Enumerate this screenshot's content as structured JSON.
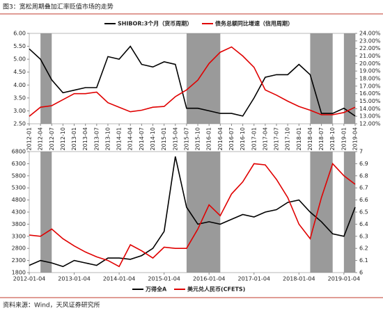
{
  "title": "图3：宽松周期叠加汇率贬值市场的走势",
  "source": "资料来源：Wind，天风证券研究所",
  "chart_data": [
    {
      "type": "line",
      "categories": [
        "2012-01",
        "2012-04",
        "2012-07",
        "2012-10",
        "2013-01",
        "2013-04",
        "2013-07",
        "2013-10",
        "2014-01",
        "2014-04",
        "2014-07",
        "2014-10",
        "2015-01",
        "2015-04",
        "2015-07",
        "2015-10",
        "2016-01",
        "2016-04",
        "2016-07",
        "2016-10",
        "2017-01",
        "2017-04",
        "2017-07",
        "2017-10",
        "2018-01",
        "2018-04",
        "2018-07",
        "2018-10",
        "2019-01",
        "2019-04"
      ],
      "series": [
        {
          "name": "SHIBOR:3个月（货币周期）",
          "color": "#000000",
          "values": [
            5.4,
            5.0,
            4.2,
            3.7,
            3.8,
            3.9,
            3.9,
            5.1,
            5.0,
            5.5,
            4.8,
            4.7,
            4.9,
            4.8,
            3.1,
            3.1,
            3.0,
            2.9,
            2.9,
            2.8,
            3.5,
            4.3,
            4.4,
            4.4,
            4.8,
            4.4,
            2.9,
            2.9,
            3.1,
            2.8
          ]
        },
        {
          "name": "债务总额同比增速（信用周期）",
          "color": "#e00000",
          "axis": "y2",
          "values": [
            13.0,
            14.2,
            14.4,
            15.2,
            16.0,
            16.0,
            16.2,
            14.8,
            14.2,
            13.6,
            13.8,
            14.2,
            14.3,
            15.6,
            16.5,
            17.8,
            20.0,
            21.5,
            22.2,
            21.0,
            19.5,
            16.5,
            15.8,
            15.0,
            14.3,
            13.8,
            13.2,
            13.2,
            13.5,
            14.2
          ]
        }
      ],
      "ylim": [
        2.5,
        6
      ],
      "yticks": [
        {
          "value": 2.5,
          "label": "2.50"
        },
        {
          "value": 3,
          "label": "3.00"
        },
        {
          "value": 3.5,
          "label": "3.50"
        },
        {
          "value": 4,
          "label": "4.00"
        },
        {
          "value": 4.5,
          "label": "4.50"
        },
        {
          "value": 5,
          "label": "5.00"
        },
        {
          "value": 5.5,
          "label": "5.50"
        },
        {
          "value": 6,
          "label": "6.00"
        }
      ],
      "y2lim": [
        12,
        24
      ],
      "y2ticks": [
        {
          "value": 12,
          "label": "12.00%"
        },
        {
          "value": 13,
          "label": "13.00%"
        },
        {
          "value": 14,
          "label": "14.00%"
        },
        {
          "value": 15,
          "label": "15.00%"
        },
        {
          "value": 16,
          "label": "16.00%"
        },
        {
          "value": 17,
          "label": "17.00%"
        },
        {
          "value": 18,
          "label": "18.00%"
        },
        {
          "value": 19,
          "label": "19.00%"
        },
        {
          "value": 20,
          "label": "20.00%"
        },
        {
          "value": 21,
          "label": "21.00%"
        },
        {
          "value": 22,
          "label": "22.00%"
        },
        {
          "value": 23,
          "label": "23.00%"
        },
        {
          "value": 24,
          "label": "24.00%"
        }
      ],
      "shaded": [
        [
          "2012-04",
          "2012-07"
        ],
        [
          "2015-07",
          "2016-04"
        ],
        [
          "2018-04",
          "2018-10"
        ],
        [
          "2019-01",
          "2019-04"
        ]
      ],
      "legend": "top",
      "rotate_x_labels": true
    },
    {
      "type": "line",
      "categories": [
        "2012-01-04",
        null,
        null,
        null,
        "2013-01-04",
        null,
        null,
        null,
        "2014-01-04",
        null,
        null,
        null,
        "2015-01-04",
        null,
        null,
        null,
        "2016-01-04",
        null,
        null,
        null,
        "2017-01-04",
        null,
        null,
        null,
        "2018-01-04",
        null,
        null,
        null,
        "2019-01-04",
        null
      ],
      "series": [
        {
          "name": "万得全A",
          "color": "#000000",
          "values": [
            2100,
            2300,
            2200,
            2050,
            2300,
            2200,
            2100,
            2400,
            2400,
            2350,
            2500,
            2800,
            3500,
            6600,
            4500,
            3800,
            3900,
            3800,
            4000,
            4200,
            4100,
            4300,
            4400,
            4700,
            4800,
            4300,
            3900,
            3400,
            3300,
            4500
          ]
        },
        {
          "name": "美元兑人民币(CFETS)",
          "color": "#e00000",
          "axis": "y2",
          "values": [
            6.31,
            6.3,
            6.36,
            6.28,
            6.22,
            6.17,
            6.13,
            6.1,
            6.05,
            6.23,
            6.18,
            6.12,
            6.21,
            6.2,
            6.2,
            6.36,
            6.56,
            6.47,
            6.65,
            6.75,
            6.9,
            6.89,
            6.77,
            6.62,
            6.4,
            6.28,
            6.62,
            6.9,
            6.8,
            6.73
          ]
        }
      ],
      "ylim": [
        1800,
        6800
      ],
      "yticks": [
        1800,
        2300,
        2800,
        3300,
        3800,
        4300,
        4800,
        5300,
        5800,
        6300,
        6800
      ],
      "y2lim": [
        6,
        7
      ],
      "y2ticks": [
        6,
        6.1,
        6.2,
        6.3,
        6.4,
        6.5,
        6.6,
        6.7,
        6.8,
        6.9,
        7
      ],
      "shaded": [
        [
          "2012-04",
          "2012-07"
        ],
        [
          "2015-07",
          "2016-04"
        ],
        [
          "2018-04",
          "2018-10"
        ],
        [
          "2019-01",
          "2019-04"
        ]
      ],
      "legend": "bottom",
      "rotate_x_labels": false
    }
  ]
}
